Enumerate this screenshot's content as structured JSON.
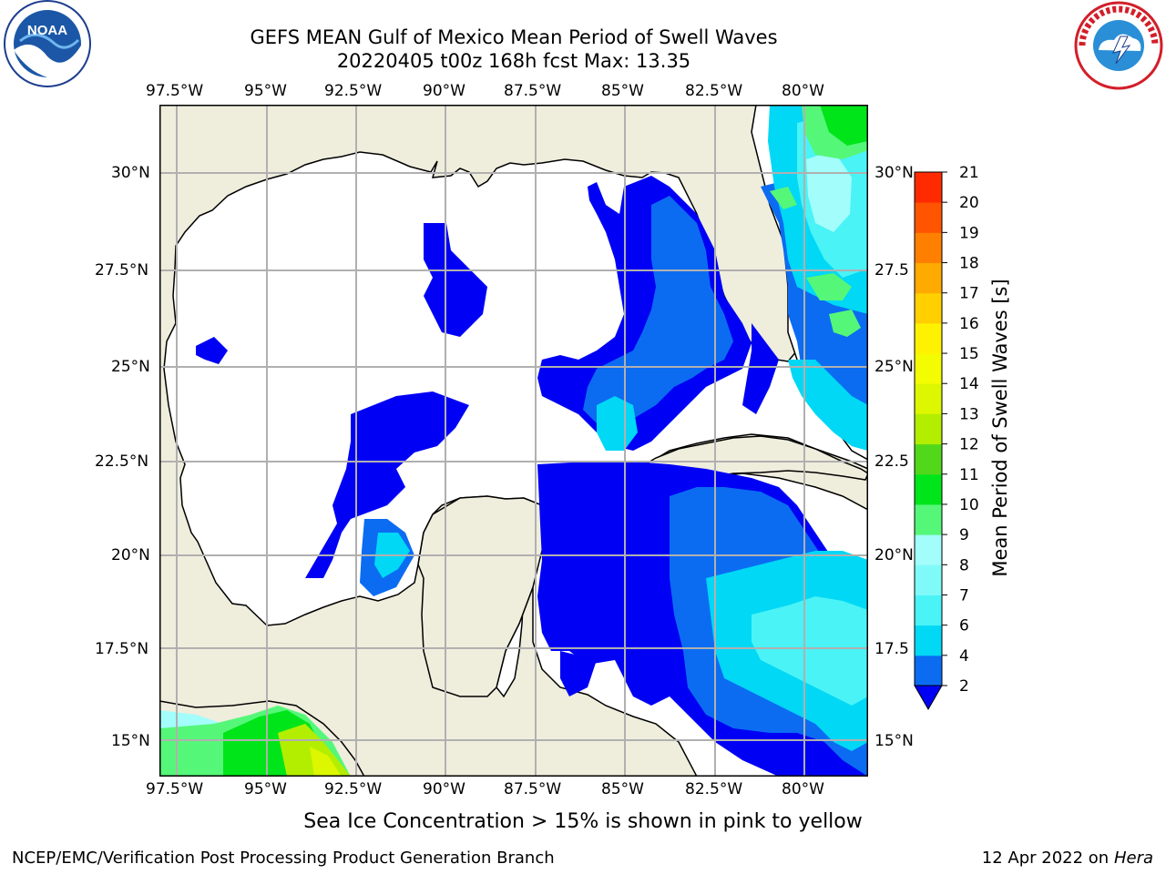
{
  "title": {
    "line1": "GEFS MEAN Gulf of Mexico Mean Period of Swell Waves",
    "line2": "20220405 t00z 168h fcst   Max: 13.35"
  },
  "map": {
    "lon_labels": [
      "97.5°W",
      "95°W",
      "92.5°W",
      "90°W",
      "87.5°W",
      "85°W",
      "82.5°W",
      "80°W"
    ],
    "lat_labels": [
      "30°N",
      "27.5°N",
      "25°N",
      "22.5°N",
      "20°N",
      "17.5°N",
      "15°N"
    ],
    "lat_labels_right": [
      "30°N",
      "27.5",
      "25°N",
      "22.5",
      "20°N",
      "17.5",
      "15°N"
    ],
    "colors": {
      "land": "#efeddc",
      "ocean_nodata": "#ffffff",
      "grid": "#b0b0b0",
      "coast": "#000000"
    }
  },
  "colorbar": {
    "label": "Mean Period of Swell Waves [s]",
    "ticks": [
      "2",
      "4",
      "6",
      "7",
      "8",
      "9",
      "10",
      "11",
      "12",
      "13",
      "14",
      "15",
      "16",
      "17",
      "18",
      "19",
      "20",
      "21"
    ],
    "colors": [
      "#0b6cf2",
      "#00d8f5",
      "#49f3f6",
      "#7ffaf8",
      "#a2fdfb",
      "#55f779",
      "#00e51a",
      "#52d81a",
      "#b3ee00",
      "#dcf700",
      "#f3fc00",
      "#fff200",
      "#ffcf00",
      "#ffaa00",
      "#ff8000",
      "#ff5500",
      "#ff2a00"
    ],
    "under_color": "#0000f5"
  },
  "note": "Sea Ice Concentration > 15% is shown in pink to yellow",
  "footer": {
    "left": "NCEP/EMC/Verification Post Processing Product Generation Branch",
    "right_date": "12 Apr 2022 on ",
    "right_host": "Hera"
  },
  "logos": {
    "left": "NOAA",
    "right": "NATIONAL WEATHER SERVICE"
  }
}
